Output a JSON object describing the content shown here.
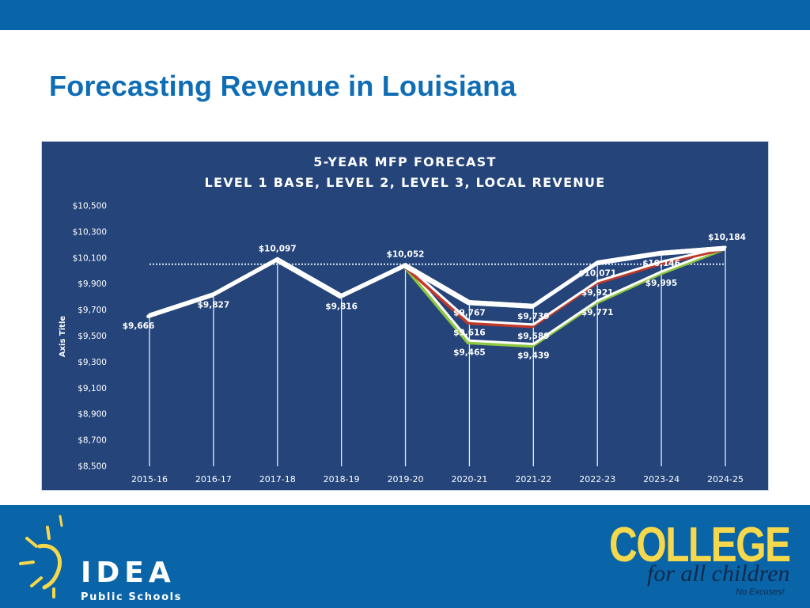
{
  "slide": {
    "title": "Forecasting Revenue in Louisiana"
  },
  "colors": {
    "brand_blue": "#0a64a8",
    "title_blue": "#0f6db5",
    "chart_bg": "#24447a",
    "series_base": "#ffffff",
    "series_level2": "#c0392b",
    "series_level3": "#8dc63f",
    "series_local": "#4a90d9",
    "logo_yellow": "#f6d84c"
  },
  "chart_data": {
    "type": "line",
    "title": "5-YEAR MFP FORECAST",
    "subtitle": "LEVEL 1 BASE, LEVEL 2, LEVEL 3, LOCAL REVENUE",
    "ylabel": "Axis Title",
    "xlabel": "",
    "ylim": [
      8500,
      10500
    ],
    "y_ticks": [
      8500,
      8700,
      8900,
      9100,
      9300,
      9500,
      9700,
      9900,
      10100,
      10300,
      10500
    ],
    "y_tick_labels": [
      "$8,500",
      "$8,700",
      "$8,900",
      "$9,100",
      "$9,300",
      "$9,500",
      "$9,700",
      "$9,900",
      "$10,100",
      "$10,300",
      "$10,500"
    ],
    "categories": [
      "2015-16",
      "2016-17",
      "2017-18",
      "2018-19",
      "2019-20",
      "2020-21",
      "2021-22",
      "2022-23",
      "2023-24",
      "2024-25"
    ],
    "reference_value": 10052,
    "grid": false,
    "legend": "none",
    "series": [
      {
        "values": [
          9666,
          9827,
          10097,
          9816,
          10052,
          9767,
          9739,
          10071,
          10146,
          10184
        ],
        "labels": [
          "$9,666",
          "$9,827",
          "$10,097",
          "$9,816",
          "$10,052",
          "$9,767",
          "$9,739",
          "$10,071",
          "$10,146",
          "$10,184"
        ]
      },
      {
        "values": [
          9666,
          9827,
          10097,
          9816,
          10052,
          9616,
          9589,
          9921,
          10071,
          10184
        ],
        "labels": [
          "",
          "",
          "",
          "",
          "",
          "$9,616",
          "$9,589",
          "$9,921",
          "",
          ""
        ]
      },
      {
        "values": [
          9666,
          9827,
          10097,
          9816,
          10052,
          9465,
          9439,
          9771,
          9995,
          10184
        ],
        "labels": [
          "",
          "",
          "",
          "",
          "",
          "$9,465",
          "$9,439",
          "$9,771",
          "$9,995",
          ""
        ]
      },
      {
        "values": [
          9666,
          9827,
          10097,
          9816,
          10052,
          9767,
          9739,
          10071,
          10146,
          10184
        ],
        "labels": [
          "",
          "",
          "",
          "",
          "",
          "",
          "",
          "",
          "",
          ""
        ]
      }
    ]
  },
  "footer": {
    "org_name": "IDEA",
    "org_sub": "Public Schools",
    "slogan_main": "COLLEGE",
    "slogan_sub": "for all children",
    "slogan_tag": "No Excuses!"
  }
}
